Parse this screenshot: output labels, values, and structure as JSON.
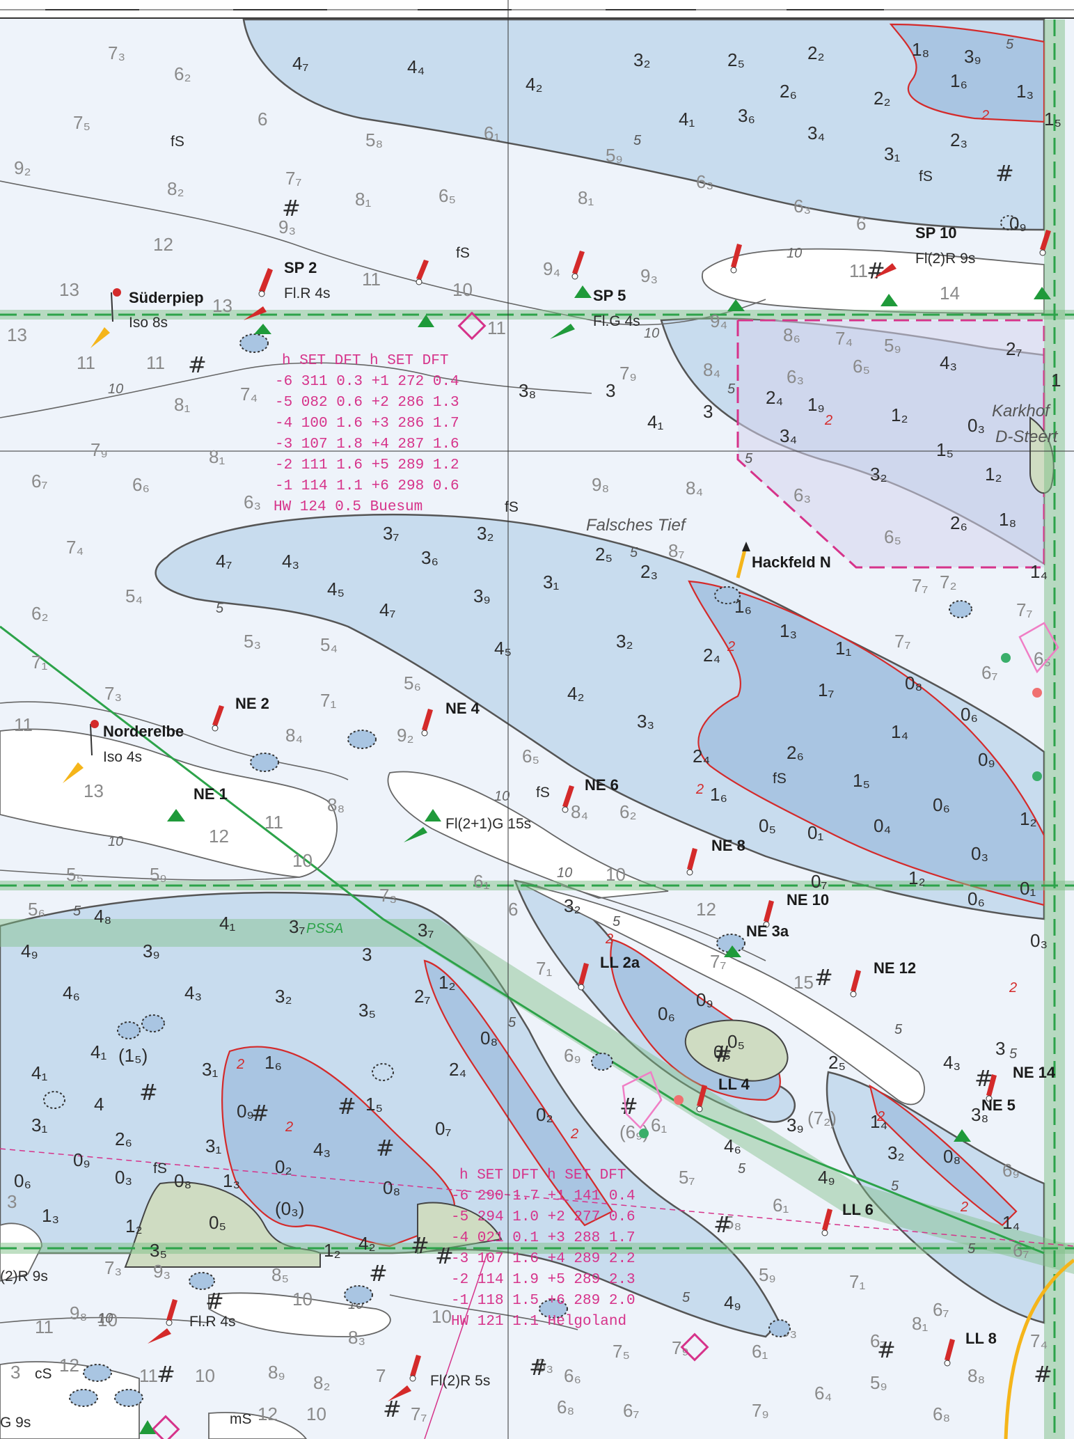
{
  "colors": {
    "deep": "#eef3fa",
    "mid": "#c8dcee",
    "shallow": "#a9c5e2",
    "drying": "#cfdcc2",
    "white": "#ffffff",
    "lane": "#7fbf88",
    "depth_line": "#d42a2a",
    "magenta": "#d6338a",
    "green_buoy": "#1f9a3a",
    "red_buoy": "#d42a2a",
    "orange_light": "#f5b51a"
  },
  "place_names": [
    {
      "text": "Falsches Tief"
    },
    {
      "text": "Karkhof"
    },
    {
      "text": "D-Steert"
    }
  ],
  "lane_label": "PSSA",
  "aids": [
    {
      "name": "Süderpiep",
      "light": "Iso 8s"
    },
    {
      "name": "SP 2",
      "light": "Fl.R 4s"
    },
    {
      "name": "SP 5",
      "light": "Fl.G 4s"
    },
    {
      "name": "SP 10",
      "light": "Fl(2)R 9s"
    },
    {
      "name": "Hackfeld N",
      "light": ""
    },
    {
      "name": "Norderelbe",
      "light": "Iso 4s"
    },
    {
      "name": "NE 1",
      "light": ""
    },
    {
      "name": "NE 2",
      "light": ""
    },
    {
      "name": "NE 4",
      "light": ""
    },
    {
      "name": "NE 6",
      "light": ""
    },
    {
      "name": "NE 8",
      "light": ""
    },
    {
      "name": "NE 10",
      "light": ""
    },
    {
      "name": "NE 3a",
      "light": ""
    },
    {
      "name": "NE 12",
      "light": ""
    },
    {
      "name": "NE 14",
      "light": ""
    },
    {
      "name": "NE 5",
      "light": ""
    },
    {
      "name": "LL 2a",
      "light": ""
    },
    {
      "name": "LL 4",
      "light": ""
    },
    {
      "name": "LL 6",
      "light": ""
    },
    {
      "name": "LL 8",
      "light": ""
    }
  ],
  "misc_labels": [
    "Fl(2+1)G 15s",
    "Fl.R 4s",
    "Fl(2)R 5s",
    "(2)R 9s",
    "G 9s",
    "fS",
    "mS",
    "cS"
  ],
  "tide_tables": [
    {
      "header": "h SET DFT    h SET DFT",
      "rows": [
        "-6 311 0.3  +1 272 0.4",
        "-5 082 0.6  +2 286 1.3",
        "-4 100 1.6  +3 286 1.7",
        "-3 107 1.8  +4 287 1.6",
        "-2 111 1.6  +5 289 1.2",
        "-1 114 1.1  +6 298 0.6"
      ],
      "footer": "HW 124 0.5 Buesum"
    },
    {
      "header": "h SET DFT    h SET DFT",
      "rows": [
        "-6 290 1.7  +1 141 0.4",
        "-5 294 1.0  +2 277 0.6",
        "-4 021 0.1  +3 288 1.7",
        "-3 107 1.6  +4 289 2.2",
        "-2 114 1.9  +5 289 2.3",
        "-1 118 1.5  +6 289 2.0"
      ],
      "footer": "HW 121 1.1 Helgoland"
    }
  ]
}
